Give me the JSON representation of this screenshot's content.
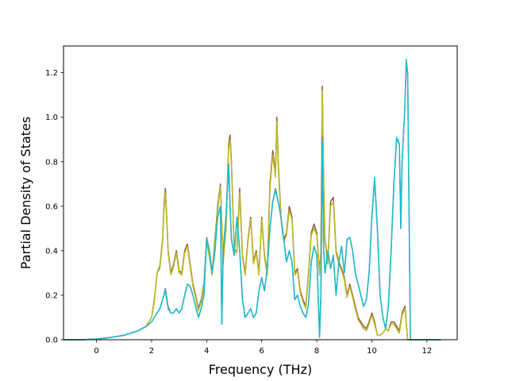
{
  "chart_data": {
    "type": "line",
    "title": "",
    "xlabel": "Frequency (THz)",
    "ylabel": "Partial Density of States",
    "xlim": [
      -1.2,
      13.1
    ],
    "ylim": [
      0.0,
      1.32
    ],
    "xticks": [
      0,
      2,
      4,
      6,
      8,
      10,
      12
    ],
    "yticks": [
      0.0,
      0.2,
      0.4,
      0.6,
      0.8,
      1.0,
      1.2
    ],
    "xtick_labels": [
      "0",
      "2",
      "4",
      "6",
      "8",
      "10",
      "12"
    ],
    "ytick_labels": [
      "0.0",
      "0.2",
      "0.4",
      "0.6",
      "0.8",
      "1.0",
      "1.2"
    ],
    "grid": false,
    "legend": "none",
    "series": [
      {
        "color": "#8c564b",
        "x": [
          -1.2,
          -0.5,
          0,
          0.5,
          1.0,
          1.5,
          1.8,
          2.0,
          2.1,
          2.2,
          2.3,
          2.4,
          2.45,
          2.5,
          2.55,
          2.6,
          2.7,
          2.8,
          2.9,
          3.0,
          3.1,
          3.2,
          3.3,
          3.4,
          3.5,
          3.6,
          3.7,
          3.8,
          3.9,
          4.0,
          4.1,
          4.2,
          4.3,
          4.4,
          4.5,
          4.6,
          4.7,
          4.8,
          4.85,
          4.9,
          5.0,
          5.1,
          5.2,
          5.3,
          5.4,
          5.5,
          5.6,
          5.7,
          5.8,
          5.9,
          6.0,
          6.1,
          6.2,
          6.3,
          6.4,
          6.5,
          6.55,
          6.6,
          6.7,
          6.8,
          6.9,
          7.0,
          7.1,
          7.2,
          7.3,
          7.4,
          7.5,
          7.6,
          7.7,
          7.8,
          7.9,
          8.0,
          8.1,
          8.15,
          8.2,
          8.25,
          8.3,
          8.4,
          8.5,
          8.6,
          8.7,
          8.8,
          8.9,
          9.0,
          9.1,
          9.2,
          9.3,
          9.4,
          9.5,
          9.6,
          9.7,
          9.8,
          9.9,
          10.0,
          10.1,
          10.2,
          10.3,
          10.4,
          10.5,
          10.6,
          10.7,
          10.8,
          10.9,
          11.0,
          11.1,
          11.2,
          11.3,
          11.35,
          11.4,
          11.5,
          12.0,
          12.5
        ],
        "y": [
          0.0,
          0.0,
          0.003,
          0.01,
          0.02,
          0.04,
          0.06,
          0.1,
          0.18,
          0.3,
          0.33,
          0.45,
          0.6,
          0.68,
          0.55,
          0.4,
          0.3,
          0.34,
          0.4,
          0.31,
          0.3,
          0.4,
          0.43,
          0.34,
          0.25,
          0.2,
          0.14,
          0.18,
          0.25,
          0.45,
          0.38,
          0.3,
          0.45,
          0.6,
          0.7,
          0.35,
          0.5,
          0.88,
          0.92,
          0.8,
          0.4,
          0.4,
          0.68,
          0.38,
          0.3,
          0.45,
          0.55,
          0.35,
          0.4,
          0.3,
          0.55,
          0.38,
          0.3,
          0.7,
          0.85,
          0.75,
          1.0,
          0.8,
          0.55,
          0.45,
          0.48,
          0.6,
          0.55,
          0.3,
          0.32,
          0.22,
          0.18,
          0.15,
          0.3,
          0.48,
          0.52,
          0.48,
          0.3,
          0.4,
          1.14,
          0.7,
          0.45,
          0.35,
          0.62,
          0.64,
          0.4,
          0.35,
          0.32,
          0.28,
          0.2,
          0.25,
          0.2,
          0.15,
          0.1,
          0.08,
          0.06,
          0.05,
          0.08,
          0.12,
          0.08,
          0.02,
          0.02,
          0.03,
          0.05,
          0.04,
          0.08,
          0.08,
          0.06,
          0.04,
          0.12,
          0.15,
          0.0,
          0.0,
          0.0,
          0.0,
          0.0,
          0.0
        ]
      },
      {
        "color": "#bcbd22",
        "x": [
          -1.2,
          -0.5,
          0,
          0.5,
          1.0,
          1.5,
          1.8,
          2.0,
          2.1,
          2.2,
          2.3,
          2.4,
          2.45,
          2.5,
          2.55,
          2.6,
          2.7,
          2.8,
          2.9,
          3.0,
          3.1,
          3.2,
          3.3,
          3.4,
          3.5,
          3.6,
          3.7,
          3.8,
          3.9,
          4.0,
          4.1,
          4.2,
          4.3,
          4.4,
          4.5,
          4.6,
          4.7,
          4.8,
          4.85,
          4.9,
          5.0,
          5.1,
          5.2,
          5.3,
          5.4,
          5.5,
          5.6,
          5.7,
          5.8,
          5.9,
          6.0,
          6.1,
          6.2,
          6.3,
          6.4,
          6.5,
          6.55,
          6.6,
          6.7,
          6.8,
          6.9,
          7.0,
          7.1,
          7.2,
          7.3,
          7.4,
          7.5,
          7.6,
          7.7,
          7.8,
          7.9,
          8.0,
          8.1,
          8.15,
          8.2,
          8.25,
          8.3,
          8.4,
          8.5,
          8.6,
          8.7,
          8.8,
          8.9,
          9.0,
          9.1,
          9.2,
          9.3,
          9.4,
          9.5,
          9.6,
          9.7,
          9.8,
          9.9,
          10.0,
          10.1,
          10.2,
          10.3,
          10.4,
          10.5,
          10.6,
          10.7,
          10.8,
          10.9,
          11.0,
          11.1,
          11.2,
          11.3,
          11.35,
          11.4,
          11.5,
          12.0,
          12.5
        ],
        "y": [
          0.0,
          0.0,
          0.003,
          0.01,
          0.02,
          0.04,
          0.06,
          0.1,
          0.17,
          0.3,
          0.32,
          0.44,
          0.58,
          0.66,
          0.54,
          0.39,
          0.29,
          0.33,
          0.39,
          0.3,
          0.29,
          0.39,
          0.42,
          0.33,
          0.24,
          0.19,
          0.13,
          0.17,
          0.24,
          0.44,
          0.37,
          0.29,
          0.44,
          0.58,
          0.69,
          0.34,
          0.49,
          0.86,
          0.9,
          0.78,
          0.39,
          0.39,
          0.66,
          0.37,
          0.29,
          0.44,
          0.54,
          0.34,
          0.39,
          0.29,
          0.54,
          0.37,
          0.29,
          0.68,
          0.83,
          0.73,
          0.98,
          0.78,
          0.54,
          0.44,
          0.47,
          0.58,
          0.54,
          0.29,
          0.31,
          0.21,
          0.17,
          0.14,
          0.29,
          0.47,
          0.5,
          0.47,
          0.29,
          0.39,
          1.12,
          0.68,
          0.44,
          0.34,
          0.6,
          0.62,
          0.39,
          0.34,
          0.31,
          0.27,
          0.19,
          0.24,
          0.19,
          0.14,
          0.09,
          0.07,
          0.05,
          0.04,
          0.07,
          0.11,
          0.07,
          0.02,
          0.02,
          0.03,
          0.05,
          0.04,
          0.07,
          0.07,
          0.05,
          0.03,
          0.11,
          0.14,
          0.0,
          0.0,
          0.0,
          0.0,
          0.0,
          0.0
        ]
      },
      {
        "color": "#7f7f7f",
        "x": [
          -1.2,
          -0.5,
          0,
          0.5,
          1.0,
          1.5,
          1.8,
          2.0,
          2.1,
          2.2,
          2.3,
          2.4,
          2.45,
          2.5,
          2.6,
          2.7,
          2.8,
          2.9,
          3.0,
          3.1,
          3.2,
          3.3,
          3.4,
          3.5,
          3.6,
          3.7,
          3.8,
          3.9,
          4.0,
          4.1,
          4.2,
          4.3,
          4.4,
          4.5,
          4.55,
          4.6,
          4.7,
          4.8,
          4.85,
          4.9,
          5.0,
          5.1,
          5.2,
          5.3,
          5.4,
          5.5,
          5.6,
          5.7,
          5.8,
          5.9,
          6.0,
          6.1,
          6.2,
          6.3,
          6.4,
          6.5,
          6.6,
          6.7,
          6.8,
          6.9,
          7.0,
          7.1,
          7.2,
          7.3,
          7.4,
          7.5,
          7.6,
          7.7,
          7.8,
          7.9,
          8.0,
          8.1,
          8.15,
          8.2,
          8.25,
          8.3,
          8.4,
          8.5,
          8.6,
          8.7,
          8.8,
          8.9,
          9.0,
          9.1,
          9.2,
          9.3,
          9.4,
          9.5,
          9.6,
          9.7,
          9.8,
          9.9,
          10.0,
          10.1,
          10.2,
          10.3,
          10.4,
          10.5,
          10.6,
          10.7,
          10.8,
          10.9,
          11.0,
          11.05,
          11.1,
          11.2,
          11.25,
          11.3,
          11.35,
          11.4,
          11.5,
          12.0,
          12.5
        ],
        "y": [
          0.0,
          0.0,
          0.003,
          0.01,
          0.02,
          0.04,
          0.06,
          0.08,
          0.1,
          0.12,
          0.14,
          0.18,
          0.2,
          0.23,
          0.15,
          0.12,
          0.12,
          0.14,
          0.12,
          0.14,
          0.2,
          0.25,
          0.24,
          0.2,
          0.15,
          0.1,
          0.14,
          0.2,
          0.46,
          0.4,
          0.3,
          0.4,
          0.55,
          0.6,
          0.07,
          0.4,
          0.55,
          0.79,
          0.6,
          0.45,
          0.38,
          0.55,
          0.4,
          0.18,
          0.1,
          0.12,
          0.14,
          0.1,
          0.12,
          0.22,
          0.28,
          0.22,
          0.32,
          0.5,
          0.62,
          0.68,
          0.62,
          0.55,
          0.45,
          0.35,
          0.4,
          0.35,
          0.18,
          0.2,
          0.15,
          0.12,
          0.1,
          0.16,
          0.35,
          0.42,
          0.38,
          0.02,
          0.2,
          0.91,
          0.4,
          0.3,
          0.4,
          0.32,
          0.38,
          0.2,
          0.35,
          0.42,
          0.3,
          0.45,
          0.46,
          0.4,
          0.3,
          0.25,
          0.2,
          0.15,
          0.18,
          0.3,
          0.55,
          0.72,
          0.5,
          0.2,
          0.1,
          0.05,
          0.15,
          0.4,
          0.7,
          0.9,
          0.88,
          0.5,
          0.8,
          1.05,
          1.24,
          1.2,
          0.6,
          0.0,
          0.0,
          0.0,
          0.0
        ]
      },
      {
        "color": "#17becf",
        "x": [
          -1.2,
          -0.5,
          0,
          0.5,
          1.0,
          1.5,
          1.8,
          2.0,
          2.1,
          2.2,
          2.3,
          2.4,
          2.45,
          2.5,
          2.6,
          2.7,
          2.8,
          2.9,
          3.0,
          3.1,
          3.2,
          3.3,
          3.4,
          3.5,
          3.6,
          3.7,
          3.8,
          3.9,
          4.0,
          4.1,
          4.2,
          4.3,
          4.4,
          4.5,
          4.55,
          4.6,
          4.7,
          4.8,
          4.85,
          4.9,
          5.0,
          5.1,
          5.2,
          5.3,
          5.4,
          5.5,
          5.6,
          5.7,
          5.8,
          5.9,
          6.0,
          6.1,
          6.2,
          6.3,
          6.4,
          6.5,
          6.6,
          6.7,
          6.8,
          6.9,
          7.0,
          7.1,
          7.2,
          7.3,
          7.4,
          7.5,
          7.6,
          7.7,
          7.8,
          7.9,
          8.0,
          8.1,
          8.15,
          8.2,
          8.25,
          8.3,
          8.4,
          8.5,
          8.6,
          8.7,
          8.8,
          8.9,
          9.0,
          9.1,
          9.2,
          9.3,
          9.4,
          9.5,
          9.6,
          9.7,
          9.8,
          9.9,
          10.0,
          10.1,
          10.2,
          10.3,
          10.4,
          10.5,
          10.6,
          10.7,
          10.8,
          10.9,
          11.0,
          11.05,
          11.1,
          11.2,
          11.25,
          11.3,
          11.35,
          11.4,
          11.5,
          12.0,
          12.5
        ],
        "y": [
          0.0,
          0.0,
          0.003,
          0.01,
          0.02,
          0.04,
          0.06,
          0.08,
          0.1,
          0.12,
          0.14,
          0.18,
          0.2,
          0.22,
          0.14,
          0.12,
          0.12,
          0.14,
          0.12,
          0.14,
          0.2,
          0.25,
          0.24,
          0.2,
          0.15,
          0.1,
          0.14,
          0.2,
          0.45,
          0.4,
          0.3,
          0.4,
          0.55,
          0.6,
          0.07,
          0.4,
          0.55,
          0.78,
          0.6,
          0.45,
          0.38,
          0.55,
          0.4,
          0.18,
          0.1,
          0.12,
          0.14,
          0.1,
          0.12,
          0.22,
          0.28,
          0.22,
          0.32,
          0.5,
          0.62,
          0.67,
          0.62,
          0.55,
          0.45,
          0.35,
          0.4,
          0.35,
          0.18,
          0.2,
          0.15,
          0.12,
          0.1,
          0.16,
          0.35,
          0.42,
          0.38,
          0.01,
          0.2,
          0.9,
          0.4,
          0.3,
          0.4,
          0.32,
          0.38,
          0.2,
          0.35,
          0.42,
          0.3,
          0.45,
          0.46,
          0.4,
          0.3,
          0.25,
          0.2,
          0.15,
          0.18,
          0.3,
          0.55,
          0.73,
          0.5,
          0.2,
          0.1,
          0.05,
          0.15,
          0.4,
          0.7,
          0.91,
          0.88,
          0.5,
          0.8,
          1.05,
          1.26,
          1.2,
          0.6,
          0.0,
          0.0,
          0.0,
          0.0
        ]
      }
    ]
  }
}
